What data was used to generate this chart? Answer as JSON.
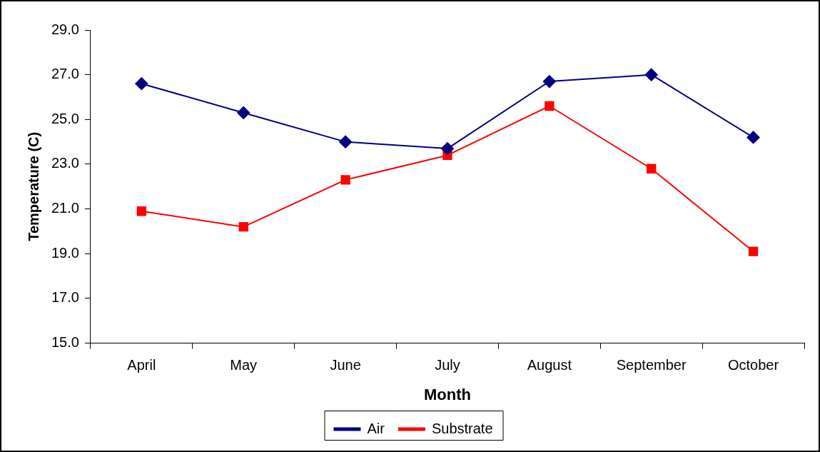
{
  "chart_data": {
    "type": "line",
    "xlabel": "Month",
    "ylabel": "Temperature (C)",
    "categories": [
      "April",
      "May",
      "June",
      "July",
      "August",
      "September",
      "October"
    ],
    "series": [
      {
        "name": "Air",
        "color": "#000080",
        "marker": "diamond",
        "values": [
          26.6,
          25.3,
          24.0,
          23.7,
          26.7,
          27.0,
          24.2
        ]
      },
      {
        "name": "Substrate",
        "color": "#ff0000",
        "marker": "square",
        "values": [
          20.9,
          20.2,
          22.3,
          23.4,
          25.6,
          22.8,
          19.1
        ]
      }
    ],
    "ylim": [
      15,
      29
    ],
    "yticks": [
      {
        "value": 15,
        "label": "15.0"
      },
      {
        "value": 17,
        "label": "17.0"
      },
      {
        "value": 19,
        "label": "19.0"
      },
      {
        "value": 21,
        "label": "21.0"
      },
      {
        "value": 23,
        "label": "23.0"
      },
      {
        "value": 25,
        "label": "25.0"
      },
      {
        "value": 27,
        "label": "27.0"
      },
      {
        "value": 29,
        "label": "29.0"
      }
    ],
    "grid": false,
    "legend": "bottom",
    "line_style": "solid"
  }
}
